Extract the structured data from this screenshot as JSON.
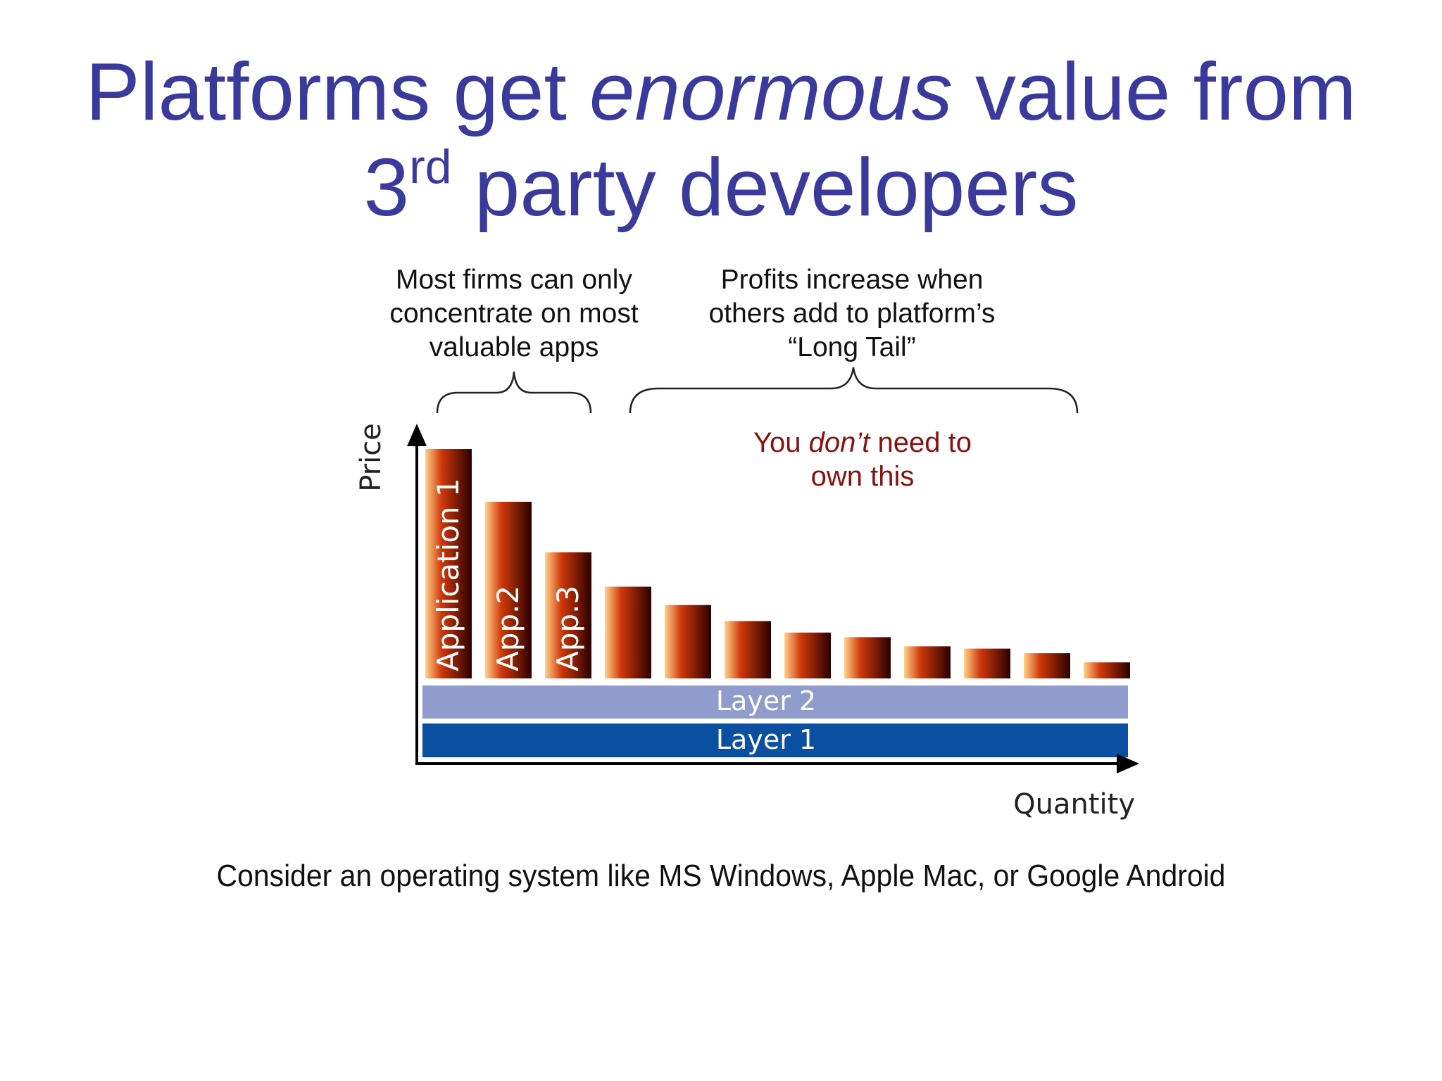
{
  "slide": {
    "title": {
      "part1": "Platforms get ",
      "emphasis": "enormous",
      "part2": " value from",
      "line2_num": "3",
      "line2_sup": "rd",
      "line2_rest": " party developers"
    },
    "note_left": {
      "line1": "Most firms can only",
      "line2": "concentrate on most",
      "line3": "valuable apps"
    },
    "note_right": {
      "line1": "Profits increase when",
      "line2": "others add to platform’s",
      "line3": "“Long Tail”"
    },
    "red_note": {
      "part1": "You ",
      "emphasis": "don’t",
      "part2": " need to",
      "line2": "own this"
    },
    "caption": "Consider an operating system like MS Windows, Apple Mac, or Google Android"
  },
  "chart_data": {
    "type": "bar",
    "xlabel": "Quantity",
    "ylabel": "Price",
    "bar_labels": [
      "Application 1",
      "App.2",
      "App.3",
      "",
      "",
      "",
      "",
      "",
      "",
      "",
      "",
      ""
    ],
    "values": [
      100,
      77,
      55,
      40,
      32,
      25,
      20,
      18,
      14,
      13,
      11,
      7
    ],
    "ylim": [
      0,
      100
    ],
    "base_layers": [
      "Layer 2",
      "Layer 1"
    ],
    "colors": {
      "bar_light": "#ffd28a",
      "bar_mid": "#d0380a",
      "bar_dark": "#2a0000",
      "layer2": "#8f9ccc",
      "layer1": "#0b4fa0"
    }
  }
}
